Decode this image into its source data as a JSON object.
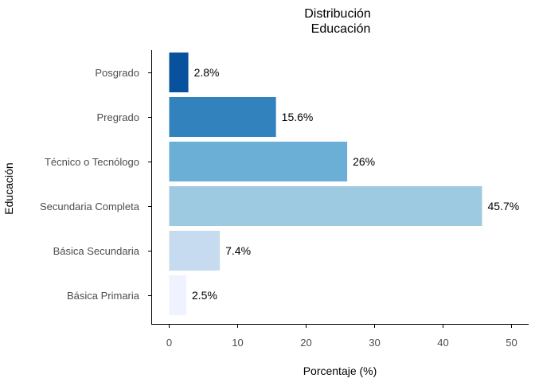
{
  "chart_data": {
    "type": "bar",
    "orientation": "horizontal",
    "title_lines": [
      "Distribución",
      "Educación"
    ],
    "xlabel": "Porcentaje (%)",
    "ylabel": "Educación",
    "xlim": [
      0,
      52
    ],
    "x_ticks": [
      0,
      10,
      20,
      30,
      40,
      50
    ],
    "grid": false,
    "legend": "none",
    "categories": [
      "Básica Primaria",
      "Básica Secundaria",
      "Secundaria Completa",
      "Técnico o Tecnólogo",
      "Pregrado",
      "Posgrado"
    ],
    "values": [
      2.5,
      7.4,
      45.7,
      26,
      15.6,
      2.8
    ],
    "data_labels": [
      "2.5%",
      "7.4%",
      "45.7%",
      "26%",
      "15.6%",
      "2.8%"
    ],
    "colors": [
      "#eff3ff",
      "#c6dbef",
      "#9ecae1",
      "#6baed6",
      "#3182bd",
      "#08519c"
    ]
  }
}
